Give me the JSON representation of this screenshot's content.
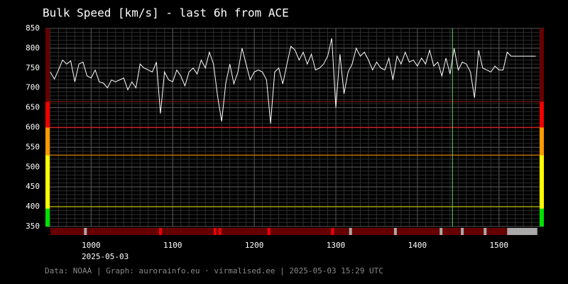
{
  "chart_data": {
    "type": "line",
    "title": "Bulk Speed [km/s] - last 6h from ACE",
    "date_label": "2025-05-03",
    "footer": "Data: NOAA | Graph: aurorainfo.eu · virmalised.ee | 2025-05-03 15:29 UTC",
    "x": [
      950,
      955,
      960,
      965,
      970,
      975,
      980,
      985,
      990,
      995,
      1000,
      1005,
      1010,
      1015,
      1020,
      1025,
      1030,
      1035,
      1040,
      1045,
      1050,
      1055,
      1060,
      1065,
      1070,
      1075,
      1080,
      1085,
      1090,
      1095,
      1100,
      1105,
      1110,
      1115,
      1120,
      1125,
      1130,
      1135,
      1140,
      1145,
      1150,
      1155,
      1160,
      1165,
      1170,
      1175,
      1180,
      1185,
      1190,
      1195,
      1200,
      1205,
      1210,
      1215,
      1220,
      1225,
      1230,
      1235,
      1240,
      1245,
      1250,
      1255,
      1260,
      1265,
      1270,
      1275,
      1280,
      1285,
      1290,
      1295,
      1300,
      1305,
      1310,
      1315,
      1320,
      1325,
      1330,
      1335,
      1340,
      1345,
      1350,
      1355,
      1360,
      1365,
      1370,
      1375,
      1380,
      1385,
      1390,
      1395,
      1400,
      1405,
      1410,
      1415,
      1420,
      1425,
      1430,
      1435,
      1440,
      1445,
      1450,
      1455,
      1460,
      1465,
      1470,
      1475,
      1480,
      1485,
      1490,
      1495,
      1500,
      1505,
      1510,
      1515,
      1520,
      1525,
      1530,
      1535,
      1540,
      1545
    ],
    "values": [
      740,
      722,
      745,
      770,
      760,
      768,
      715,
      760,
      765,
      730,
      725,
      745,
      715,
      712,
      700,
      720,
      715,
      720,
      725,
      695,
      715,
      700,
      760,
      750,
      745,
      740,
      765,
      635,
      740,
      720,
      715,
      745,
      730,
      705,
      740,
      750,
      735,
      770,
      750,
      790,
      760,
      680,
      615,
      710,
      760,
      710,
      740,
      800,
      760,
      720,
      740,
      745,
      740,
      720,
      610,
      740,
      750,
      710,
      760,
      805,
      795,
      770,
      790,
      760,
      785,
      745,
      750,
      760,
      780,
      825,
      650,
      785,
      685,
      740,
      760,
      800,
      780,
      790,
      770,
      745,
      765,
      750,
      745,
      775,
      720,
      780,
      760,
      790,
      765,
      770,
      755,
      775,
      760,
      795,
      755,
      765,
      730,
      775,
      735,
      800,
      745,
      765,
      760,
      740,
      675,
      795,
      750,
      745,
      740,
      755,
      745,
      745,
      790,
      780,
      780,
      780,
      780,
      780,
      780,
      780
    ],
    "color": "#ffffff",
    "xlim": [
      944,
      1555
    ],
    "ylim": [
      350,
      850
    ],
    "xticks": [
      1000,
      1100,
      1200,
      1300,
      1400,
      1500
    ],
    "yticks": [
      350,
      400,
      450,
      500,
      550,
      600,
      650,
      700,
      750,
      800,
      850
    ],
    "grid": true,
    "minor_grid_step": {
      "x": 10,
      "y": 10
    },
    "bands": [
      {
        "from": 350,
        "to": 395,
        "color": "#00e000"
      },
      {
        "from": 395,
        "to": 530,
        "color": "#ffff00"
      },
      {
        "from": 530,
        "to": 600,
        "color": "#ff9900"
      },
      {
        "from": 600,
        "to": 665,
        "color": "#ee0000"
      },
      {
        "from": 665,
        "to": 850,
        "color": "#660000"
      }
    ],
    "threshold_lines": [
      {
        "value": 400,
        "color": "#a0a000"
      },
      {
        "value": 530,
        "color": "#c07000"
      },
      {
        "value": 600,
        "color": "#cc2222"
      },
      {
        "value": 665,
        "color": "#661111"
      }
    ],
    "marker_x": {
      "value": 1443,
      "color": "#66cc66"
    },
    "status_bar": {
      "color": "#660000",
      "marks": [
        {
          "x": 993,
          "color": "#aaaaaa"
        },
        {
          "x": 1085,
          "color": "#ee0000"
        },
        {
          "x": 1152,
          "color": "#ee0000"
        },
        {
          "x": 1158,
          "color": "#ee0000"
        },
        {
          "x": 1218,
          "color": "#ee0000"
        },
        {
          "x": 1296,
          "color": "#ee0000"
        },
        {
          "x": 1318,
          "color": "#aaaaaa"
        },
        {
          "x": 1373,
          "color": "#aaaaaa"
        },
        {
          "x": 1429,
          "color": "#aaaaaa"
        },
        {
          "x": 1455,
          "color": "#aaaaaa"
        },
        {
          "x": 1483,
          "color": "#aaaaaa"
        }
      ],
      "gap": {
        "from": 1510,
        "to": 1547,
        "color": "#aaaaaa"
      }
    }
  }
}
